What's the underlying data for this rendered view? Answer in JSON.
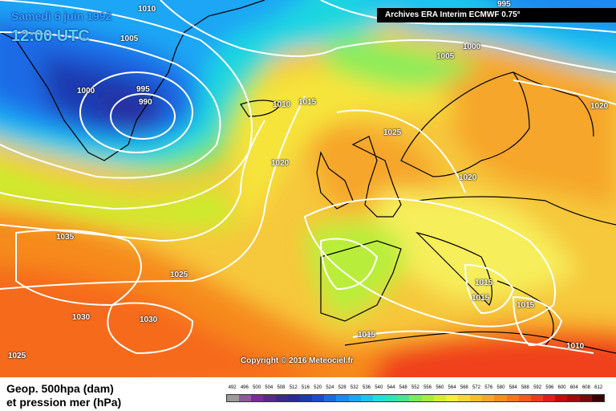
{
  "header": {
    "date": "Samedi 6 juin 1992",
    "time": "12:00 UTC",
    "archive": "Archives ERA Interim ECMWF 0.75°"
  },
  "copyright": "Copyright © 2016 Meteociel.fr",
  "legend": {
    "line1": "Geop. 500hpa (dam)",
    "line2": "et pression mer (hPa)"
  },
  "isobar_labels": [
    "1010",
    "1005",
    "995",
    "1000",
    "1005",
    "1000",
    "995",
    "990",
    "1010",
    "1015",
    "1020",
    "1025",
    "1020",
    "1020",
    "1035",
    "1025",
    "1030",
    "1030",
    "1025",
    "1015",
    "1015",
    "1015",
    "1015",
    "1010"
  ],
  "scale": {
    "ticks": [
      "492",
      "496",
      "500",
      "504",
      "508",
      "512",
      "516",
      "520",
      "524",
      "528",
      "532",
      "536",
      "540",
      "544",
      "548",
      "552",
      "556",
      "560",
      "564",
      "568",
      "572",
      "576",
      "580",
      "584",
      "588",
      "592",
      "596",
      "600",
      "604",
      "608",
      "612"
    ],
    "colors": [
      "#9a9a9a",
      "#8a5a9a",
      "#7a2a9a",
      "#5a2a8a",
      "#3a2a8a",
      "#2a2a9a",
      "#1a3ab0",
      "#1a4ad0",
      "#1a6ae6",
      "#1a8af0",
      "#1aa6f5",
      "#1ac4ee",
      "#1ae0e0",
      "#2ae6b6",
      "#4ae68a",
      "#7aec5a",
      "#a6ee3a",
      "#d6ee2a",
      "#f6ee3a",
      "#f6d63a",
      "#f6be2a",
      "#f6a62a",
      "#f68e1a",
      "#f6761a",
      "#f65a1a",
      "#ee3a1a",
      "#e61a1a",
      "#c60a0a",
      "#a00a0a",
      "#780a0a",
      "#3a0000"
    ]
  }
}
